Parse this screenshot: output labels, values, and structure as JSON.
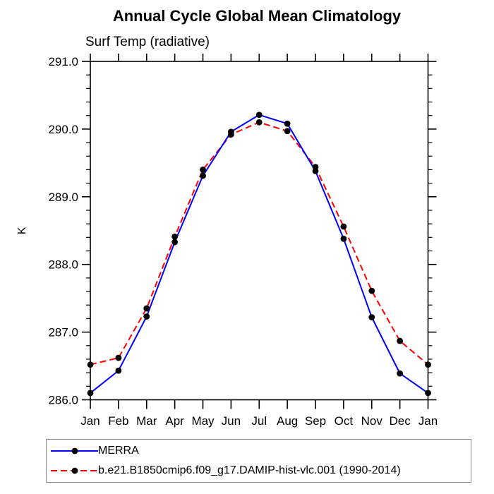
{
  "title": "Annual Cycle Global Mean Climatology",
  "subtitle": "Surf Temp (radiative)",
  "colors": {
    "merra_line": "#0000ff",
    "model_line": "#ff0000",
    "marker": "#000000",
    "axis": "#000000",
    "legend_border": "#8a8a8a"
  },
  "legend": {
    "items": [
      {
        "label": "MERRA",
        "color": "#0000ff",
        "style": "solid"
      },
      {
        "label": "b.e21.B1850cmip6.f09_g17.DAMIP-hist-vlc.001 (1990-2014)",
        "color": "#ff0000",
        "style": "dashed"
      }
    ]
  },
  "chart_data": {
    "type": "line",
    "title": "Annual Cycle Global Mean Climatology",
    "subtitle": "Surf Temp (radiative)",
    "ylabel": "K",
    "xlabel": "",
    "x": [
      "Jan",
      "Feb",
      "Mar",
      "Apr",
      "May",
      "Jun",
      "Jul",
      "Aug",
      "Sep",
      "Oct",
      "Nov",
      "Dec",
      "Jan"
    ],
    "ylim": [
      286.0,
      291.0
    ],
    "ytick_major": 1.0,
    "ytick_minor": 0.2,
    "ytick_label_format": "one_decimal",
    "grid": false,
    "legend_position": "bottom",
    "marker": "filled-circle",
    "series": [
      {
        "name": "MERRA",
        "color": "#0000ff",
        "line": "solid",
        "values": [
          286.1,
          286.43,
          287.23,
          288.33,
          289.31,
          289.96,
          290.21,
          290.08,
          289.38,
          288.38,
          287.22,
          286.39,
          286.1
        ]
      },
      {
        "name": "b.e21.B1850cmip6.f09_g17.DAMIP-hist-vlc.001 (1990-2014)",
        "color": "#ff0000",
        "line": "dashed",
        "values": [
          286.52,
          286.62,
          287.35,
          288.41,
          289.4,
          289.92,
          290.1,
          289.97,
          289.44,
          288.56,
          287.61,
          286.87,
          286.52
        ]
      }
    ]
  }
}
